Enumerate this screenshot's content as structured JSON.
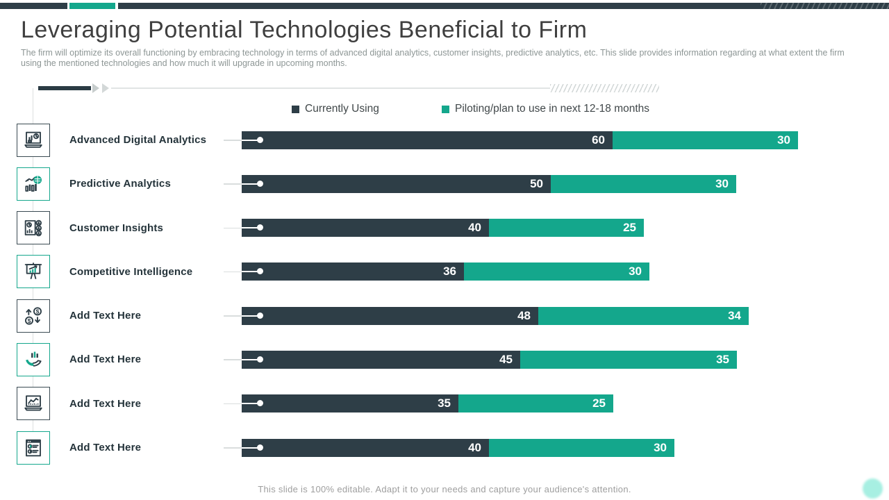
{
  "slide": {
    "title": "Leveraging Potential Technologies Beneficial to Firm",
    "subtitle": "The firm will optimize its overall functioning by  embracing technology in terms of advanced digital analytics, customer insights, predictive analytics, etc.  This slide provides information regarding at what extent the firm using the mentioned technologies and how much it will upgrade in upcoming months.",
    "footer": "This slide is 100% editable. Adapt it to your needs and capture your audience's attention."
  },
  "colors": {
    "dark": "#2e3e47",
    "teal": "#14a78c",
    "corner_accent": "#a7efe2"
  },
  "chart_data": {
    "type": "bar",
    "orientation": "horizontal",
    "stacked": true,
    "title": "",
    "xlabel": "",
    "ylabel": "",
    "xlim": [
      0,
      90
    ],
    "grid": false,
    "legend_position": "top-center",
    "categories": [
      "Advanced Digital Analytics",
      "Predictive Analytics",
      "Customer Insights",
      "Competitive Intelligence",
      "Add Text Here",
      "Add Text Here",
      "Add Text Here",
      "Add Text Here"
    ],
    "series": [
      {
        "name": "Currently Using",
        "color": "#2e3e47",
        "values": [
          60,
          50,
          40,
          36,
          48,
          45,
          35,
          40
        ]
      },
      {
        "name": "Piloting/plan to use in next 12-18 months",
        "color": "#14a78c",
        "values": [
          30,
          30,
          25,
          30,
          34,
          35,
          25,
          30
        ]
      }
    ],
    "row_icons": [
      "laptop-analytics-icon",
      "predictive-chart-icon",
      "customer-insights-icon",
      "presentation-growth-icon",
      "money-flow-icon",
      "hand-chart-icon",
      "laptop-linechart-icon",
      "checklist-icon"
    ],
    "row_icon_accents": [
      "dark",
      "teal",
      "dark",
      "teal",
      "dark",
      "teal",
      "dark",
      "teal"
    ]
  }
}
